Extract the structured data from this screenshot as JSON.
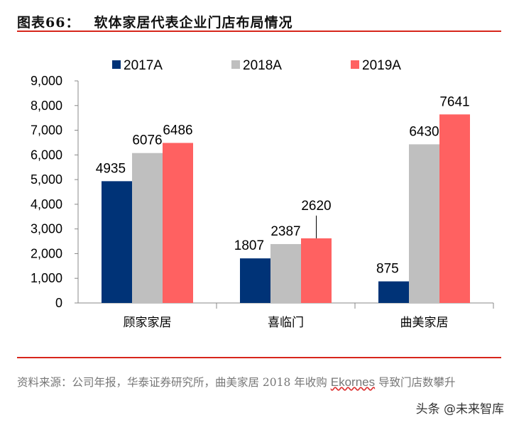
{
  "title": {
    "label": "图表66：",
    "text": "软体家居代表企业门店布局情况"
  },
  "source": {
    "prefix": "资料来源：公司年报，华泰证券研究所，曲美家居 2018 年收购 ",
    "brand": "Ekornes",
    "suffix": " 导致门店数攀升"
  },
  "watermark": "头条 @未来智库",
  "chart_data": {
    "type": "bar",
    "title": "",
    "xlabel": "",
    "ylabel": "",
    "categories": [
      "顾家家居",
      "喜临门",
      "曲美家居"
    ],
    "ylim": [
      0,
      9000
    ],
    "yticks": [
      "0",
      "1,000",
      "2,000",
      "3,000",
      "4,000",
      "5,000",
      "6,000",
      "7,000",
      "8,000",
      "9,000"
    ],
    "grid": false,
    "legend": "top",
    "series": [
      {
        "name": "2017A",
        "color": "#003377",
        "values": [
          4935,
          1807,
          875
        ]
      },
      {
        "name": "2018A",
        "color": "#bfbfbf",
        "values": [
          6076,
          2387,
          6430
        ]
      },
      {
        "name": "2019A",
        "color": "#ff6161",
        "values": [
          6486,
          2620,
          7641
        ]
      }
    ]
  }
}
